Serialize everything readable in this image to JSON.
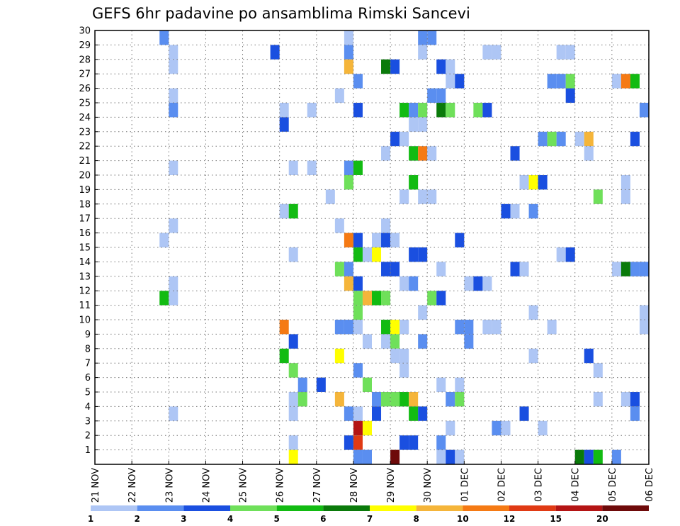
{
  "chart_data": {
    "type": "heatmap",
    "title": "GEFS 6hr padavine po ansamblima Rimski Sancevi",
    "x_ticks": [
      "21 NOV",
      "22 NOV",
      "23 NOV",
      "24 NOV",
      "25 NOV",
      "26 NOV",
      "27 NOV",
      "28 NOV",
      "29 NOV",
      "30 NOV",
      "01 DEC",
      "02 DEC",
      "03 DEC",
      "04 DEC",
      "05 DEC",
      "06 DEC"
    ],
    "y_ticks": [
      "1",
      "2",
      "3",
      "4",
      "5",
      "6",
      "7",
      "8",
      "9",
      "10",
      "11",
      "12",
      "13",
      "14",
      "15",
      "16",
      "17",
      "18",
      "19",
      "20",
      "21",
      "22",
      "23",
      "24",
      "25",
      "26",
      "27",
      "28",
      "29",
      "30"
    ],
    "xlim": [
      0,
      60
    ],
    "ylim": [
      0,
      30
    ],
    "grid": true,
    "colorbar": {
      "labels": [
        "1",
        "2",
        "3",
        "4",
        "5",
        "6",
        "7",
        "8",
        "10",
        "12",
        "15",
        "20"
      ],
      "colors": [
        "#aec6f5",
        "#5a8ef0",
        "#1a4fe0",
        "#6fe05a",
        "#12bb12",
        "#0a7a0a",
        "#ffff00",
        "#f5b53a",
        "#f57a14",
        "#e03a14",
        "#b41414",
        "#6e0a0a"
      ]
    },
    "cells": [
      [
        7,
        30,
        1
      ],
      [
        27,
        30,
        0
      ],
      [
        35,
        30,
        1
      ],
      [
        36,
        30,
        1
      ],
      [
        8,
        29,
        0
      ],
      [
        19,
        29,
        2
      ],
      [
        27,
        29,
        1
      ],
      [
        35,
        29,
        0
      ],
      [
        42,
        29,
        0
      ],
      [
        43,
        29,
        0
      ],
      [
        50,
        29,
        0
      ],
      [
        51,
        29,
        0
      ],
      [
        8,
        28,
        0
      ],
      [
        27,
        28,
        7
      ],
      [
        31,
        28,
        5
      ],
      [
        32,
        28,
        2
      ],
      [
        37,
        28,
        2
      ],
      [
        38,
        28,
        0
      ],
      [
        28,
        27,
        1
      ],
      [
        38,
        27,
        0
      ],
      [
        39,
        27,
        2
      ],
      [
        49,
        27,
        1
      ],
      [
        50,
        27,
        1
      ],
      [
        51,
        27,
        3
      ],
      [
        56,
        27,
        0
      ],
      [
        57,
        27,
        8
      ],
      [
        58,
        27,
        4
      ],
      [
        8,
        26,
        0
      ],
      [
        26,
        26,
        0
      ],
      [
        36,
        26,
        1
      ],
      [
        37,
        26,
        1
      ],
      [
        51,
        26,
        2
      ],
      [
        8,
        25,
        1
      ],
      [
        20,
        25,
        0
      ],
      [
        23,
        25,
        0
      ],
      [
        28,
        25,
        2
      ],
      [
        33,
        25,
        4
      ],
      [
        34,
        25,
        1
      ],
      [
        35,
        25,
        3
      ],
      [
        37,
        25,
        5
      ],
      [
        38,
        25,
        3
      ],
      [
        41,
        25,
        3
      ],
      [
        42,
        25,
        2
      ],
      [
        59,
        25,
        1
      ],
      [
        20,
        24,
        2
      ],
      [
        34,
        24,
        0
      ],
      [
        35,
        24,
        0
      ],
      [
        32,
        23,
        2
      ],
      [
        33,
        23,
        0
      ],
      [
        48,
        23,
        1
      ],
      [
        49,
        23,
        3
      ],
      [
        50,
        23,
        1
      ],
      [
        52,
        23,
        0
      ],
      [
        53,
        23,
        7
      ],
      [
        58,
        23,
        2
      ],
      [
        31,
        22,
        0
      ],
      [
        34,
        22,
        4
      ],
      [
        35,
        22,
        8
      ],
      [
        36,
        22,
        0
      ],
      [
        45,
        22,
        2
      ],
      [
        53,
        22,
        0
      ],
      [
        8,
        21,
        0
      ],
      [
        21,
        21,
        0
      ],
      [
        23,
        21,
        0
      ],
      [
        27,
        21,
        1
      ],
      [
        28,
        21,
        4
      ],
      [
        27,
        20,
        3
      ],
      [
        34,
        20,
        4
      ],
      [
        46,
        20,
        0
      ],
      [
        47,
        20,
        6
      ],
      [
        48,
        20,
        2
      ],
      [
        57,
        20,
        0
      ],
      [
        25,
        19,
        0
      ],
      [
        33,
        19,
        0
      ],
      [
        35,
        19,
        0
      ],
      [
        36,
        19,
        0
      ],
      [
        54,
        19,
        3
      ],
      [
        57,
        19,
        0
      ],
      [
        20,
        18,
        0
      ],
      [
        21,
        18,
        4
      ],
      [
        44,
        18,
        2
      ],
      [
        45,
        18,
        0
      ],
      [
        47,
        18,
        1
      ],
      [
        26,
        17,
        0
      ],
      [
        31,
        17,
        0
      ],
      [
        8,
        17,
        0
      ],
      [
        7,
        16,
        0
      ],
      [
        27,
        16,
        8
      ],
      [
        28,
        16,
        2
      ],
      [
        30,
        16,
        0
      ],
      [
        31,
        16,
        2
      ],
      [
        32,
        16,
        0
      ],
      [
        39,
        16,
        2
      ],
      [
        21,
        15,
        0
      ],
      [
        28,
        15,
        4
      ],
      [
        29,
        15,
        0
      ],
      [
        30,
        15,
        6
      ],
      [
        34,
        15,
        2
      ],
      [
        35,
        15,
        2
      ],
      [
        50,
        15,
        0
      ],
      [
        51,
        15,
        2
      ],
      [
        26,
        14,
        3
      ],
      [
        27,
        14,
        1
      ],
      [
        31,
        14,
        2
      ],
      [
        32,
        14,
        2
      ],
      [
        37,
        14,
        0
      ],
      [
        45,
        14,
        2
      ],
      [
        46,
        14,
        0
      ],
      [
        56,
        14,
        0
      ],
      [
        57,
        14,
        5
      ],
      [
        58,
        14,
        1
      ],
      [
        59,
        14,
        1
      ],
      [
        8,
        13,
        0
      ],
      [
        27,
        13,
        7
      ],
      [
        28,
        13,
        2
      ],
      [
        33,
        13,
        0
      ],
      [
        34,
        13,
        1
      ],
      [
        40,
        13,
        0
      ],
      [
        41,
        13,
        2
      ],
      [
        42,
        13,
        0
      ],
      [
        7,
        12,
        4
      ],
      [
        8,
        12,
        0
      ],
      [
        28,
        12,
        3
      ],
      [
        29,
        12,
        7
      ],
      [
        30,
        12,
        4
      ],
      [
        31,
        12,
        3
      ],
      [
        36,
        12,
        3
      ],
      [
        37,
        12,
        2
      ],
      [
        28,
        11,
        3
      ],
      [
        35,
        11,
        0
      ],
      [
        47,
        11,
        0
      ],
      [
        59,
        11,
        0
      ],
      [
        20,
        10,
        8
      ],
      [
        26,
        10,
        1
      ],
      [
        27,
        10,
        1
      ],
      [
        28,
        10,
        0
      ],
      [
        31,
        10,
        4
      ],
      [
        32,
        10,
        6
      ],
      [
        33,
        10,
        0
      ],
      [
        39,
        10,
        1
      ],
      [
        40,
        10,
        1
      ],
      [
        42,
        10,
        0
      ],
      [
        43,
        10,
        0
      ],
      [
        49,
        10,
        0
      ],
      [
        59,
        10,
        0
      ],
      [
        21,
        9,
        2
      ],
      [
        29,
        9,
        0
      ],
      [
        31,
        9,
        0
      ],
      [
        32,
        9,
        3
      ],
      [
        35,
        9,
        1
      ],
      [
        40,
        9,
        1
      ],
      [
        20,
        8,
        4
      ],
      [
        26,
        8,
        6
      ],
      [
        32,
        8,
        0
      ],
      [
        33,
        8,
        0
      ],
      [
        47,
        8,
        0
      ],
      [
        53,
        8,
        2
      ],
      [
        21,
        7,
        3
      ],
      [
        28,
        7,
        1
      ],
      [
        33,
        7,
        0
      ],
      [
        54,
        7,
        0
      ],
      [
        22,
        6,
        1
      ],
      [
        24,
        6,
        2
      ],
      [
        29,
        6,
        3
      ],
      [
        37,
        6,
        0
      ],
      [
        39,
        6,
        0
      ],
      [
        21,
        5,
        0
      ],
      [
        22,
        5,
        3
      ],
      [
        26,
        5,
        7
      ],
      [
        30,
        5,
        1
      ],
      [
        31,
        5,
        3
      ],
      [
        32,
        5,
        3
      ],
      [
        33,
        5,
        4
      ],
      [
        34,
        5,
        7
      ],
      [
        38,
        5,
        1
      ],
      [
        39,
        5,
        3
      ],
      [
        54,
        5,
        0
      ],
      [
        57,
        5,
        0
      ],
      [
        58,
        5,
        2
      ],
      [
        8,
        4,
        0
      ],
      [
        21,
        4,
        0
      ],
      [
        27,
        4,
        1
      ],
      [
        28,
        4,
        0
      ],
      [
        30,
        4,
        2
      ],
      [
        34,
        4,
        4
      ],
      [
        35,
        4,
        2
      ],
      [
        46,
        4,
        2
      ],
      [
        58,
        4,
        1
      ],
      [
        28,
        3,
        10
      ],
      [
        29,
        3,
        6
      ],
      [
        38,
        3,
        0
      ],
      [
        43,
        3,
        1
      ],
      [
        44,
        3,
        0
      ],
      [
        48,
        3,
        0
      ],
      [
        21,
        2,
        0
      ],
      [
        27,
        2,
        2
      ],
      [
        28,
        2,
        9
      ],
      [
        33,
        2,
        2
      ],
      [
        34,
        2,
        2
      ],
      [
        37,
        2,
        1
      ],
      [
        21,
        1,
        6
      ],
      [
        28,
        1,
        1
      ],
      [
        29,
        1,
        1
      ],
      [
        32,
        1,
        11
      ],
      [
        37,
        1,
        0
      ],
      [
        38,
        1,
        2
      ],
      [
        39,
        1,
        0
      ],
      [
        52,
        1,
        5
      ],
      [
        53,
        1,
        2
      ],
      [
        54,
        1,
        4
      ],
      [
        56,
        1,
        1
      ]
    ]
  }
}
